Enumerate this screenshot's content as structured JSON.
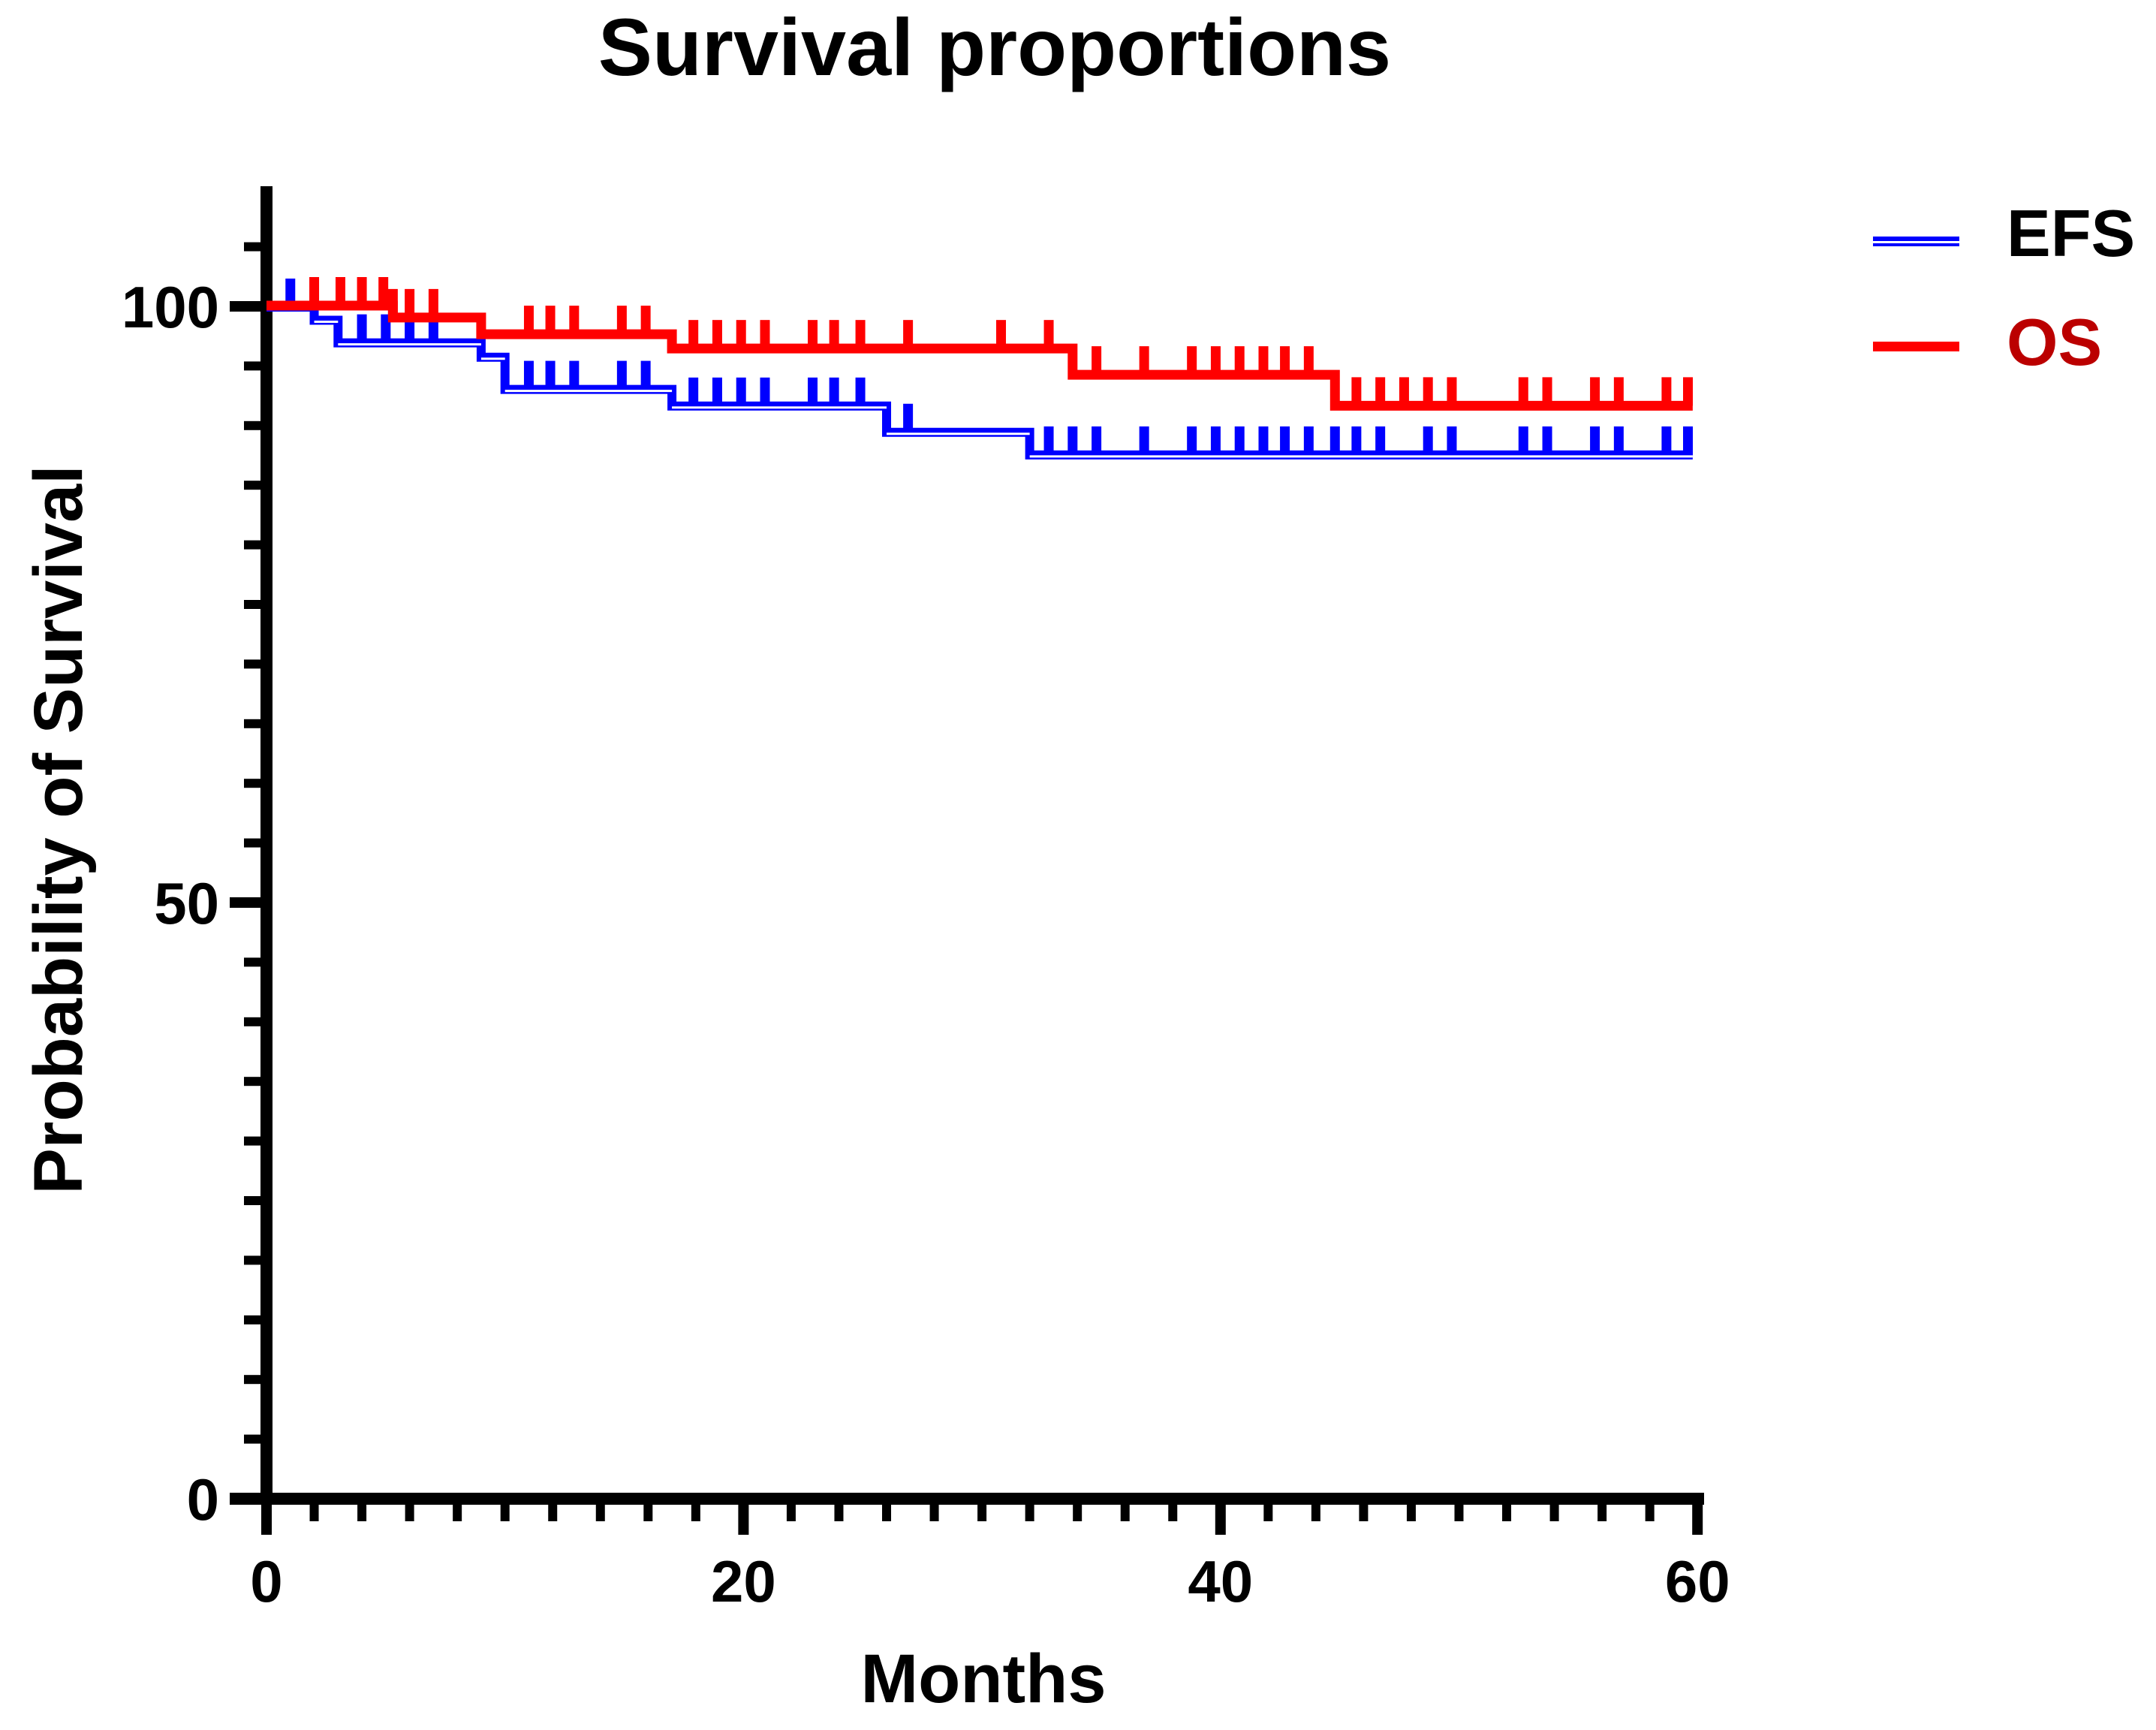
{
  "chart_data": {
    "type": "line",
    "subtype": "kaplan_meier_step",
    "title": "Survival proportions",
    "xlabel": "Months",
    "ylabel": "Probability of Survival",
    "xlim": [
      0,
      60
    ],
    "ylim": [
      0,
      110
    ],
    "x_major_ticks": [
      0,
      20,
      40,
      60
    ],
    "x_minor_tick_step": 2,
    "y_major_ticks": [
      0,
      50,
      100
    ],
    "y_minor_tick_step": 5,
    "grid": false,
    "legend_position": "top-right",
    "series": [
      {
        "name": "EFS",
        "color": "#0000ff",
        "line_style": "double",
        "steps": [
          {
            "t": 0,
            "s": 100
          },
          {
            "t": 2,
            "s": 98.9
          },
          {
            "t": 3,
            "s": 97.0
          },
          {
            "t": 9,
            "s": 95.8
          },
          {
            "t": 10,
            "s": 93.1
          },
          {
            "t": 17,
            "s": 91.7
          },
          {
            "t": 26,
            "s": 89.5
          },
          {
            "t": 32,
            "s": 87.6
          }
        ],
        "end_time": 59.8,
        "censor_times": [
          1,
          4,
          5,
          6,
          7,
          11,
          11.9,
          12.9,
          14.9,
          15.9,
          17.9,
          18.9,
          19.9,
          20.9,
          22.9,
          23.8,
          24.9,
          26.9,
          32.8,
          33.8,
          34.8,
          36.8,
          38.8,
          39.8,
          40.8,
          41.8,
          42.7,
          43.7,
          44.8,
          45.7,
          46.7,
          48.7,
          49.7,
          52.7,
          53.7,
          55.7,
          56.7,
          58.7,
          59.6
        ]
      },
      {
        "name": "OS",
        "color": "#ff0000",
        "line_style": "solid",
        "steps": [
          {
            "t": 0,
            "s": 100
          },
          {
            "t": 5.3,
            "s": 99.0
          },
          {
            "t": 9,
            "s": 97.6
          },
          {
            "t": 17,
            "s": 96.4
          },
          {
            "t": 33.8,
            "s": 94.2
          },
          {
            "t": 44.8,
            "s": 91.6
          }
        ],
        "end_time": 59.8,
        "censor_times": [
          2,
          3.1,
          4,
          4.9,
          5.3,
          6,
          7,
          11,
          11.9,
          12.9,
          14.9,
          15.9,
          17.9,
          18.9,
          19.9,
          20.9,
          22.9,
          23.8,
          24.9,
          26.9,
          30.8,
          32.8,
          34.8,
          36.8,
          38.8,
          39.8,
          40.8,
          41.8,
          42.7,
          43.7,
          45.7,
          46.7,
          47.7,
          48.7,
          49.7,
          52.7,
          53.7,
          55.7,
          56.7,
          58.7,
          59.6
        ]
      }
    ]
  },
  "legend": {
    "items": [
      {
        "label": "EFS",
        "swatch_color": "#0000ff",
        "label_color": "#000000",
        "line_style": "double"
      },
      {
        "label": "OS",
        "swatch_color": "#ff0000",
        "label_color": "#bb0000",
        "line_style": "solid"
      }
    ]
  }
}
